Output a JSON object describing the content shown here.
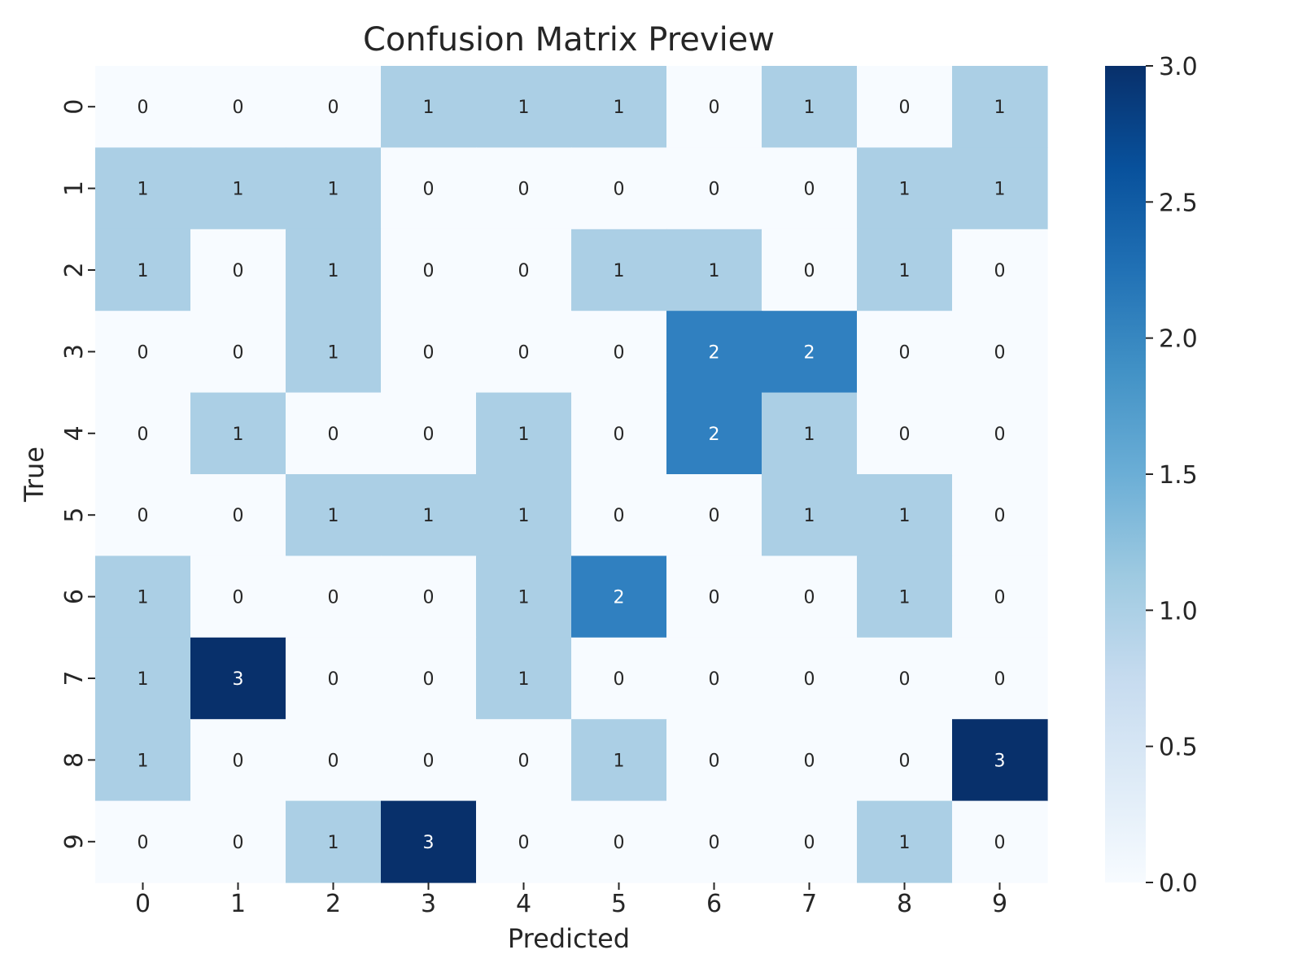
{
  "chart_data": {
    "type": "heatmap",
    "title": "Confusion Matrix Preview",
    "xlabel": "Predicted",
    "ylabel": "True",
    "x_categories": [
      "0",
      "1",
      "2",
      "3",
      "4",
      "5",
      "6",
      "7",
      "8",
      "9"
    ],
    "y_categories": [
      "0",
      "1",
      "2",
      "3",
      "4",
      "5",
      "6",
      "7",
      "8",
      "9"
    ],
    "matrix": [
      [
        0,
        0,
        0,
        1,
        1,
        1,
        0,
        1,
        0,
        1
      ],
      [
        1,
        1,
        1,
        0,
        0,
        0,
        0,
        0,
        1,
        1
      ],
      [
        1,
        0,
        1,
        0,
        0,
        1,
        1,
        0,
        1,
        0
      ],
      [
        0,
        0,
        1,
        0,
        0,
        0,
        2,
        2,
        0,
        0
      ],
      [
        0,
        1,
        0,
        0,
        1,
        0,
        2,
        1,
        0,
        0
      ],
      [
        0,
        0,
        1,
        1,
        1,
        0,
        0,
        1,
        1,
        0
      ],
      [
        1,
        0,
        0,
        0,
        1,
        2,
        0,
        0,
        1,
        0
      ],
      [
        1,
        3,
        0,
        0,
        1,
        0,
        0,
        0,
        0,
        0
      ],
      [
        1,
        0,
        0,
        0,
        0,
        1,
        0,
        0,
        0,
        3
      ],
      [
        0,
        0,
        1,
        3,
        0,
        0,
        0,
        0,
        1,
        0
      ]
    ],
    "colorbar": {
      "range": [
        0,
        3
      ],
      "ticks": [
        "0.0",
        "0.5",
        "1.0",
        "1.5",
        "2.0",
        "2.5",
        "3.0"
      ],
      "colormap": "Blues",
      "colors": {
        "0": "#f7fbff",
        "1": "#abcfe5",
        "2": "#3080c0",
        "3": "#08306b"
      }
    }
  }
}
